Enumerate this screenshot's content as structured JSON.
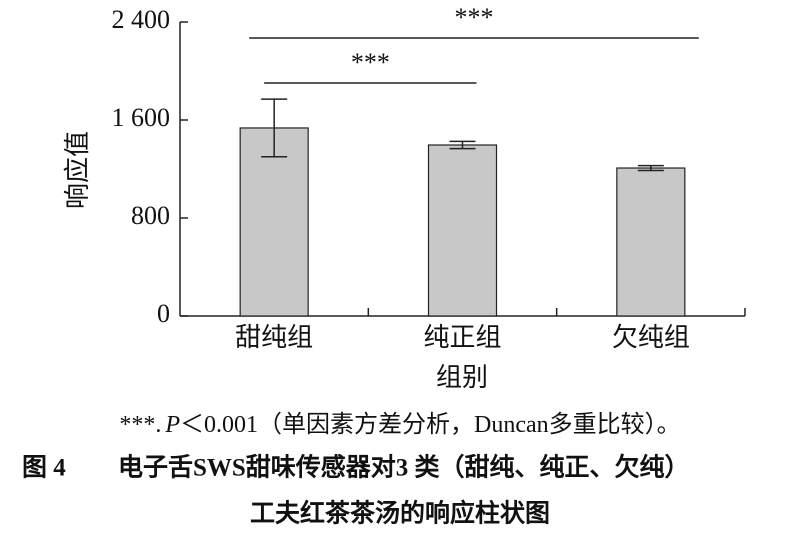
{
  "chart_data": {
    "type": "bar",
    "categories": [
      "甜纯组",
      "纯正组",
      "欠纯组"
    ],
    "values": [
      1535,
      1396,
      1208
    ],
    "errors": [
      235,
      30,
      20
    ],
    "color": "#c8c8c8",
    "xlabel": "组别",
    "ylabel": "响应值",
    "ylim": [
      0,
      2400
    ],
    "yticks": [
      0,
      800,
      {
        "value": 1600,
        "label": "1 600"
      },
      {
        "value": 2400,
        "label": "2 400"
      }
    ],
    "significance": [
      {
        "from": "甜纯组",
        "to": "纯正组",
        "label": "***"
      },
      {
        "from": "甜纯组",
        "to": "欠纯组",
        "label": "***"
      }
    ]
  },
  "note": {
    "mark": "***.",
    "p": "P",
    "rest": "＜0.001（单因素方差分析，Duncan多重比较）。"
  },
  "caption": {
    "label": "图 4",
    "line1": "电子舌SWS甜味传感器对3 类（甜纯、纯正、欠纯）",
    "line2": "工夫红茶茶汤的响应柱状图"
  }
}
